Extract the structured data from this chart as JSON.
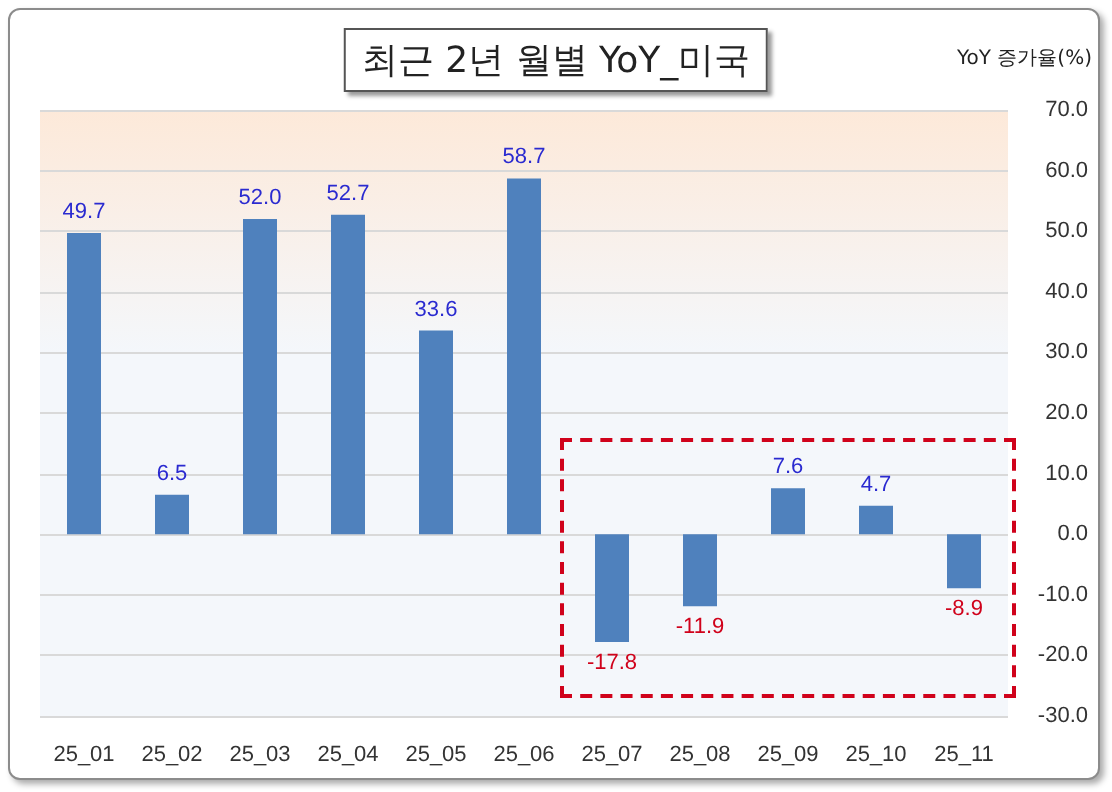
{
  "chart_data": {
    "type": "bar",
    "title": "최근 2년 월별 YoY_미국",
    "ylabel": "YoY 증가율(%)",
    "categories": [
      "25_01",
      "25_02",
      "25_03",
      "25_04",
      "25_05",
      "25_06",
      "25_07",
      "25_08",
      "25_09",
      "25_10",
      "25_11"
    ],
    "values": [
      49.7,
      6.5,
      52.0,
      52.7,
      33.6,
      58.7,
      -17.8,
      -11.9,
      7.6,
      4.7,
      -8.9
    ],
    "value_labels": [
      "49.7",
      "6.5",
      "52.0",
      "52.7",
      "33.6",
      "58.7",
      "-17.8",
      "-11.9",
      "7.6",
      "4.7",
      "-8.9"
    ],
    "color": "#4f81bd",
    "ylim": [
      -30,
      70
    ],
    "yticks": [
      {
        "value": -30,
        "label": "-30.0"
      },
      {
        "value": -20,
        "label": "-20.0"
      },
      {
        "value": -10,
        "label": "-10.0"
      },
      {
        "value": 0,
        "label": "0.0"
      },
      {
        "value": 10,
        "label": "10.0"
      },
      {
        "value": 20,
        "label": "20.0"
      },
      {
        "value": 30,
        "label": "30.0"
      },
      {
        "value": 40,
        "label": "40.0"
      },
      {
        "value": 50,
        "label": "50.0"
      },
      {
        "value": 60,
        "label": "60.0"
      },
      {
        "value": 70,
        "label": "70.0"
      }
    ],
    "grid": "y"
  }
}
